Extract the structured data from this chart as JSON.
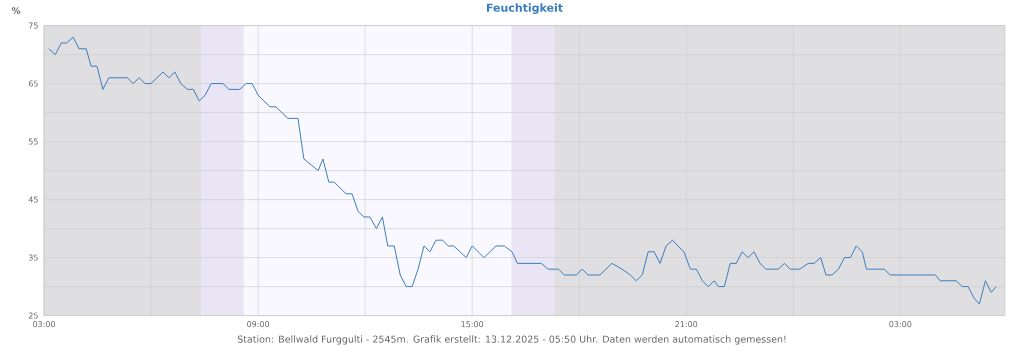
{
  "chart_data": {
    "type": "line",
    "title": "Feuchtigkeit",
    "ylabel": "%",
    "annotations": [
      "Station: Bellwald Furggulti - 2545m. Grafik erstellt: 13.12.2025 - 05:50 Uhr. Daten werden automatisch gemessen!"
    ],
    "xlim": [
      "2025-12-12T03:00",
      "2025-12-13T05:56"
    ],
    "ylim": [
      25,
      75
    ],
    "xticks": [
      {
        "value": "2025-12-12T03:00",
        "label": "03:00"
      },
      {
        "value": "2025-12-12T06:00",
        "label": null
      },
      {
        "value": "2025-12-12T09:00",
        "label": "09:00"
      },
      {
        "value": "2025-12-12T12:00",
        "label": null
      },
      {
        "value": "2025-12-12T15:00",
        "label": "15:00"
      },
      {
        "value": "2025-12-12T18:00",
        "label": null
      },
      {
        "value": "2025-12-12T21:00",
        "label": "21:00"
      },
      {
        "value": "2025-12-13T00:00",
        "label": null
      },
      {
        "value": "2025-12-13T03:00",
        "label": "03:00"
      }
    ],
    "yticks": [
      25,
      {
        "value": 30,
        "label": null
      },
      35,
      {
        "value": 40,
        "label": null
      },
      45,
      {
        "value": 50,
        "label": null
      },
      55,
      {
        "value": 60,
        "label": null
      },
      65,
      {
        "value": 70,
        "label": null
      },
      75
    ],
    "grid": true,
    "marker": "none",
    "line_style": "solid",
    "bands": [
      {
        "axis": "x",
        "from": "2025-12-12T03:00",
        "to": "2025-12-12T07:24",
        "color": "#dfdfe2"
      },
      {
        "axis": "x",
        "from": "2025-12-12T07:24",
        "to": "2025-12-12T08:36",
        "color": "#e9e5f5"
      },
      {
        "axis": "x",
        "from": "2025-12-12T16:06",
        "to": "2025-12-12T17:18",
        "color": "#e9e5f5"
      },
      {
        "axis": "x",
        "from": "2025-12-12T17:18",
        "to": "2025-12-13T05:56",
        "color": "#dfdfe2"
      }
    ],
    "series": [
      {
        "color": "#3a7dbf",
        "x": [
          "2025-12-12T03:08",
          "2025-12-12T03:19",
          "2025-12-12T03:29",
          "2025-12-12T03:38",
          "2025-12-12T03:49",
          "2025-12-12T03:59",
          "2025-12-12T04:11",
          "2025-12-12T04:19",
          "2025-12-12T04:29",
          "2025-12-12T04:39",
          "2025-12-12T04:49",
          "2025-12-12T05:20",
          "2025-12-12T05:30",
          "2025-12-12T05:40",
          "2025-12-12T05:50",
          "2025-12-12T06:00",
          "2025-12-12T06:20",
          "2025-12-12T06:30",
          "2025-12-12T06:40",
          "2025-12-12T06:50",
          "2025-12-12T07:01",
          "2025-12-12T07:11",
          "2025-12-12T07:21",
          "2025-12-12T07:31",
          "2025-12-12T07:41",
          "2025-12-12T08:01",
          "2025-12-12T08:11",
          "2025-12-12T08:29",
          "2025-12-12T08:40",
          "2025-12-12T08:50",
          "2025-12-12T09:00",
          "2025-12-12T09:10",
          "2025-12-12T09:20",
          "2025-12-12T09:30",
          "2025-12-12T09:50",
          "2025-12-12T10:07",
          "2025-12-12T10:17",
          "2025-12-12T10:41",
          "2025-12-12T10:49",
          "2025-12-12T10:59",
          "2025-12-12T11:08",
          "2025-12-12T11:28",
          "2025-12-12T11:38",
          "2025-12-12T11:48",
          "2025-12-12T11:58",
          "2025-12-12T12:08",
          "2025-12-12T12:19",
          "2025-12-12T12:29",
          "2025-12-12T12:38",
          "2025-12-12T12:49",
          "2025-12-12T12:59",
          "2025-12-12T13:09",
          "2025-12-12T13:19",
          "2025-12-12T13:29",
          "2025-12-12T13:39",
          "2025-12-12T13:49",
          "2025-12-12T13:59",
          "2025-12-12T14:10",
          "2025-12-12T14:20",
          "2025-12-12T14:29",
          "2025-12-12T14:50",
          "2025-12-12T15:00",
          "2025-12-12T15:20",
          "2025-12-12T15:40",
          "2025-12-12T15:54",
          "2025-12-12T16:07",
          "2025-12-12T16:16",
          "2025-12-12T16:56",
          "2025-12-12T17:08",
          "2025-12-12T17:25",
          "2025-12-12T17:35",
          "2025-12-12T17:55",
          "2025-12-12T18:05",
          "2025-12-12T18:15",
          "2025-12-12T18:35",
          "2025-12-12T18:55",
          "2025-12-12T19:12",
          "2025-12-12T19:26",
          "2025-12-12T19:36",
          "2025-12-12T19:46",
          "2025-12-12T19:56",
          "2025-12-12T20:06",
          "2025-12-12T20:16",
          "2025-12-12T20:26",
          "2025-12-12T20:37",
          "2025-12-12T20:46",
          "2025-12-12T20:56",
          "2025-12-12T21:07",
          "2025-12-12T21:17",
          "2025-12-12T21:27",
          "2025-12-12T21:37",
          "2025-12-12T21:47",
          "2025-12-12T21:54",
          "2025-12-12T22:04",
          "2025-12-12T22:14",
          "2025-12-12T22:24",
          "2025-12-12T22:34",
          "2025-12-12T22:44",
          "2025-12-12T22:54",
          "2025-12-12T23:04",
          "2025-12-12T23:14",
          "2025-12-12T23:35",
          "2025-12-12T23:45",
          "2025-12-12T23:55",
          "2025-12-13T00:11",
          "2025-12-13T00:25",
          "2025-12-13T00:35",
          "2025-12-13T00:46",
          "2025-12-13T00:55",
          "2025-12-13T01:05",
          "2025-12-13T01:16",
          "2025-12-13T01:26",
          "2025-12-13T01:36",
          "2025-12-13T01:46",
          "2025-12-13T01:56",
          "2025-12-13T02:03",
          "2025-12-13T02:33",
          "2025-12-13T02:43",
          "2025-12-13T03:59",
          "2025-12-13T04:07",
          "2025-12-13T04:34",
          "2025-12-13T04:44",
          "2025-12-13T04:54",
          "2025-12-13T05:04",
          "2025-12-13T05:13",
          "2025-12-13T05:23",
          "2025-12-13T05:33",
          "2025-12-13T05:41"
        ],
        "values": [
          71,
          70,
          72,
          72,
          73,
          71,
          71,
          68,
          68,
          64,
          66,
          66,
          65,
          66,
          65,
          65,
          67,
          66,
          67,
          65,
          64,
          64,
          62,
          63,
          65,
          65,
          64,
          64,
          65,
          65,
          63,
          62,
          61,
          61,
          59,
          59,
          52,
          50,
          52,
          48,
          48,
          46,
          46,
          43,
          42,
          42,
          40,
          42,
          37,
          37,
          32,
          30,
          30,
          33,
          37,
          36,
          38,
          38,
          37,
          37,
          35,
          37,
          35,
          37,
          37,
          36,
          34,
          34,
          33,
          33,
          32,
          32,
          33,
          32,
          32,
          34,
          33,
          32,
          31,
          32,
          36,
          36,
          34,
          37,
          38,
          37,
          36,
          33,
          33,
          31,
          30,
          31,
          30,
          30,
          34,
          34,
          36,
          35,
          36,
          34,
          33,
          33,
          34,
          33,
          33,
          34,
          34,
          35,
          32,
          32,
          33,
          35,
          35,
          37,
          36,
          33,
          33,
          32,
          32,
          31,
          31,
          30,
          30,
          28,
          27,
          31,
          29,
          30
        ]
      }
    ]
  }
}
